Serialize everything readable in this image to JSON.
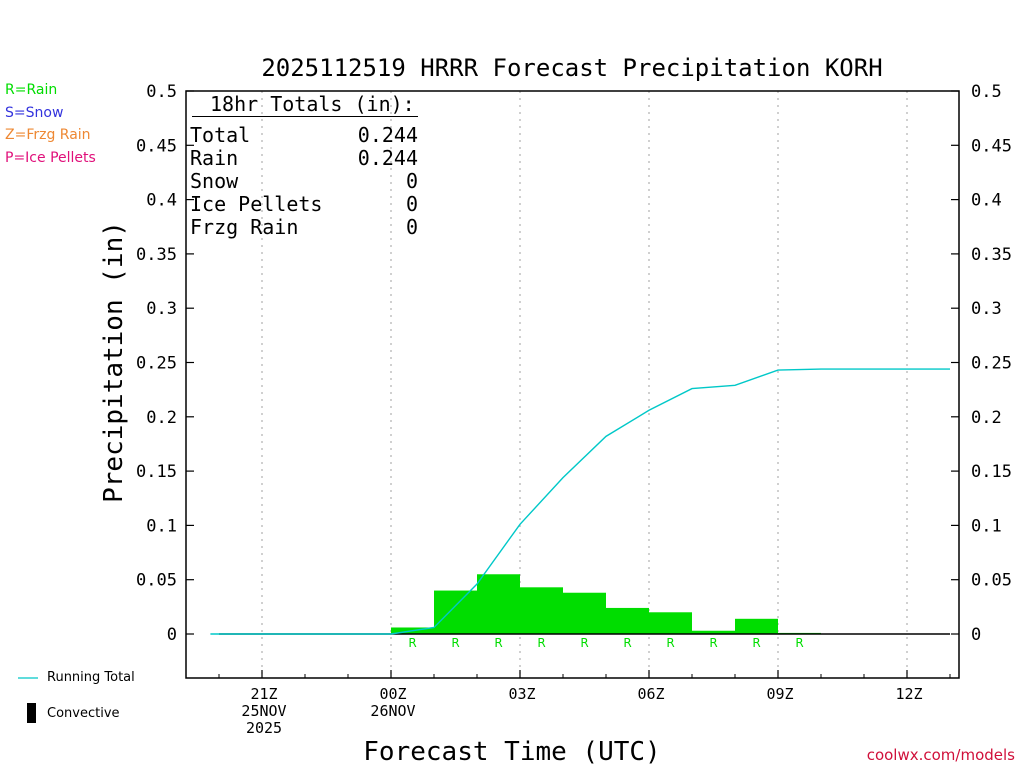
{
  "colors": {
    "rain": "#00dd00",
    "snow": "#3333dd",
    "frzg_rain": "#ee8833",
    "ice_pellets": "#e0107a",
    "running_total": "#00c8c8",
    "convective": "#000000",
    "credit": "#d0103a"
  },
  "ptype_legend": [
    {
      "key": "rain",
      "label": "R=Rain"
    },
    {
      "key": "snow",
      "label": "S=Snow"
    },
    {
      "key": "frzg_rain",
      "label": "Z=Frzg Rain"
    },
    {
      "key": "ice_pellets",
      "label": "P=Ice Pellets"
    }
  ],
  "totals": {
    "header": "18hr Totals (in):",
    "rows": [
      {
        "label": "Total",
        "value": "0.244"
      },
      {
        "label": "Rain",
        "value": "0.244"
      },
      {
        "label": "Snow",
        "value": "0"
      },
      {
        "label": "Ice Pellets",
        "value": "0"
      },
      {
        "label": "Frzg Rain",
        "value": "0"
      }
    ]
  },
  "series_legend": {
    "running_total": "Running Total",
    "convective": "Convective"
  },
  "credit": "coolwx.com/models",
  "chart_data": {
    "type": "bar",
    "title": "2025112519 HRRR Forecast Precipitation KORH",
    "xlabel": "Forecast Time (UTC)",
    "ylabel": "Precipitation (in)",
    "ylim": [
      -0.04,
      0.5
    ],
    "xlim": [
      19,
      37
    ],
    "yticks": [
      0,
      0.05,
      0.1,
      0.15,
      0.2,
      0.25,
      0.3,
      0.35,
      0.4,
      0.45,
      0.5
    ],
    "ytick_labels": [
      "0",
      "0.05",
      "0.1",
      "0.15",
      "0.2",
      "0.25",
      "0.3",
      "0.35",
      "0.4",
      "0.45",
      "0.5"
    ],
    "xticks": [
      {
        "hour": 21,
        "lines": [
          "21Z",
          "25NOV",
          "2025"
        ]
      },
      {
        "hour": 24,
        "lines": [
          "00Z",
          "26NOV"
        ]
      },
      {
        "hour": 27,
        "lines": [
          "03Z"
        ]
      },
      {
        "hour": 30,
        "lines": [
          "06Z"
        ]
      },
      {
        "hour": 33,
        "lines": [
          "09Z"
        ]
      },
      {
        "hour": 36,
        "lines": [
          "12Z"
        ]
      }
    ],
    "grid": true,
    "hourly_precip": [
      {
        "hour": 20,
        "value": 0,
        "ptype": ""
      },
      {
        "hour": 21,
        "value": 0,
        "ptype": ""
      },
      {
        "hour": 22,
        "value": 0,
        "ptype": ""
      },
      {
        "hour": 23,
        "value": 0,
        "ptype": ""
      },
      {
        "hour": 24,
        "value": 0,
        "ptype": ""
      },
      {
        "hour": 25,
        "value": 0.006,
        "ptype": "R"
      },
      {
        "hour": 26,
        "value": 0.04,
        "ptype": "R"
      },
      {
        "hour": 27,
        "value": 0.055,
        "ptype": "R"
      },
      {
        "hour": 28,
        "value": 0.043,
        "ptype": "R"
      },
      {
        "hour": 29,
        "value": 0.038,
        "ptype": "R"
      },
      {
        "hour": 30,
        "value": 0.024,
        "ptype": "R"
      },
      {
        "hour": 31,
        "value": 0.02,
        "ptype": "R"
      },
      {
        "hour": 32,
        "value": 0.003,
        "ptype": "R"
      },
      {
        "hour": 33,
        "value": 0.014,
        "ptype": "R"
      },
      {
        "hour": 34,
        "value": 0.001,
        "ptype": "R"
      },
      {
        "hour": 35,
        "value": 0,
        "ptype": ""
      },
      {
        "hour": 36,
        "value": 0,
        "ptype": ""
      },
      {
        "hour": 37,
        "value": 0,
        "ptype": ""
      }
    ],
    "running_total": {
      "hours": [
        19.8,
        24,
        25,
        26,
        27,
        28,
        29,
        30,
        31,
        32,
        33,
        34,
        35,
        36,
        37
      ],
      "values": [
        0,
        0,
        0.006,
        0.046,
        0.101,
        0.144,
        0.182,
        0.206,
        0.226,
        0.229,
        0.243,
        0.244,
        0.244,
        0.244,
        0.244
      ]
    }
  }
}
